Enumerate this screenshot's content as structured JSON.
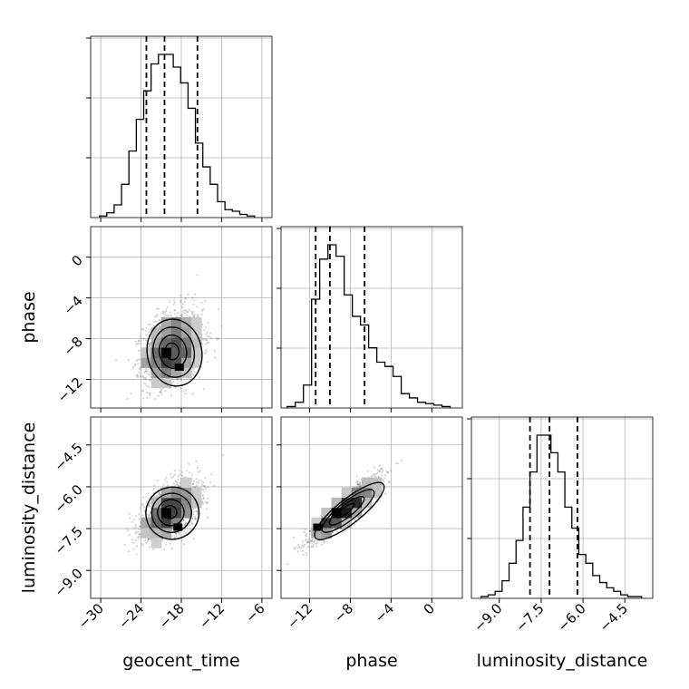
{
  "chart_data": {
    "type": "corner",
    "parameters": [
      "geocent_time",
      "phase",
      "luminosity_distance"
    ],
    "grid": true,
    "ranges": {
      "geocent_time": [
        -31.5,
        -4.5
      ],
      "phase": [
        -14.8,
        3.0
      ],
      "luminosity_distance": [
        -10.0,
        -3.5
      ]
    },
    "ticks": {
      "geocent_time": [
        -30,
        -24,
        -18,
        -12,
        -6
      ],
      "phase": [
        -12,
        -8,
        -4,
        0
      ],
      "luminosity_distance": [
        -9.0,
        -7.5,
        -6.0,
        -4.5
      ]
    },
    "tick_labels": {
      "geocent_time": [
        "−30",
        "−24",
        "−18",
        "−12",
        "−6"
      ],
      "phase": [
        "−12",
        "−8",
        "−4",
        "0"
      ],
      "luminosity_distance": [
        "−9.0",
        "−7.5",
        "−6.0",
        "−4.5"
      ]
    },
    "row_tick_labels": {
      "phase": [
        "−12",
        "−8",
        "−4",
        "0"
      ],
      "luminosity_distance": [
        "−9.0",
        "−7.5",
        "−6.0",
        "−4.5"
      ]
    },
    "quantiles": {
      "geocent_time": [
        -23.2,
        -20.5,
        -15.6
      ],
      "phase": [
        -11.4,
        -10.0,
        -6.6
      ],
      "luminosity_distance": [
        -7.9,
        -7.2,
        -6.2
      ]
    },
    "histograms": {
      "geocent_time": {
        "edges": [
          -30.2,
          -29.1,
          -28.0,
          -26.9,
          -25.8,
          -24.7,
          -23.6,
          -22.5,
          -21.4,
          -20.3,
          -19.2,
          -18.1,
          -17.0,
          -15.9,
          -14.8,
          -13.7,
          -12.6,
          -11.5,
          -10.4,
          -9.3,
          -8.2,
          -7.1
        ],
        "counts": [
          10,
          30,
          80,
          210,
          420,
          620,
          800,
          970,
          1030,
          1030,
          950,
          850,
          690,
          470,
          320,
          210,
          100,
          50,
          40,
          20,
          10
        ]
      },
      "phase": {
        "edges": [
          -14.2,
          -13.4,
          -12.6,
          -11.8,
          -11.0,
          -10.2,
          -9.4,
          -8.6,
          -7.8,
          -7.0,
          -6.2,
          -5.4,
          -4.6,
          -3.8,
          -3.0,
          -2.2,
          -1.4,
          -0.6,
          0.2,
          1.0,
          1.8
        ],
        "counts": [
          10,
          40,
          160,
          760,
          1040,
          1140,
          1060,
          790,
          640,
          580,
          420,
          320,
          290,
          220,
          100,
          70,
          40,
          30,
          20,
          10
        ]
      },
      "luminosity_distance": {
        "edges": [
          -9.65,
          -9.4,
          -9.15,
          -8.9,
          -8.65,
          -8.4,
          -8.15,
          -7.9,
          -7.65,
          -7.4,
          -7.15,
          -6.9,
          -6.65,
          -6.4,
          -6.15,
          -5.9,
          -5.65,
          -5.4,
          -5.15,
          -4.9,
          -4.65,
          -4.4,
          -4.15,
          -3.9
        ],
        "counts": [
          10,
          20,
          40,
          100,
          200,
          330,
          520,
          720,
          930,
          930,
          830,
          720,
          520,
          400,
          250,
          200,
          130,
          90,
          60,
          40,
          20,
          10,
          10
        ]
      }
    },
    "scatter": [
      {
        "x_param": "geocent_time",
        "y_param": "phase",
        "center": [
          -19.5,
          -9.2
        ],
        "spread": [
          3.7,
          3.0
        ],
        "rho": 0.25,
        "skew": 0.6,
        "n": 1700,
        "peak": [
          -18.3,
          -10.8
        ]
      },
      {
        "x_param": "geocent_time",
        "y_param": "luminosity_distance",
        "center": [
          -19.8,
          -6.9
        ],
        "spread": [
          3.6,
          0.85
        ],
        "rho": 0.52,
        "skew": 0.45,
        "n": 1700,
        "peak": [
          -18.5,
          -7.45
        ]
      },
      {
        "x_param": "phase",
        "y_param": "luminosity_distance",
        "center": [
          -8.6,
          -6.85
        ],
        "spread": [
          2.8,
          0.9
        ],
        "rho": 0.9,
        "skew": 0.5,
        "n": 1700,
        "peak": [
          -11.2,
          -7.45
        ]
      }
    ],
    "contour_levels": [
      0.118,
      0.393,
      0.675,
      0.864
    ],
    "axis_labels": {
      "x": [
        "geocent_time",
        "phase",
        "luminosity_distance"
      ],
      "y": [
        "phase",
        "luminosity_distance"
      ]
    }
  }
}
